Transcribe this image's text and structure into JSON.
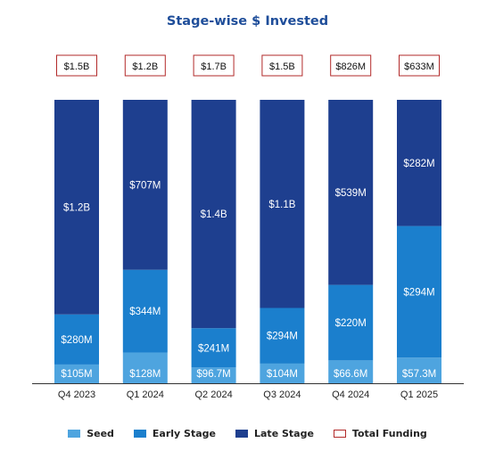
{
  "colors": {
    "seed": "#4ea4df",
    "early": "#1b7fcd",
    "late": "#1e3f8f",
    "total_border": "#b22a2a",
    "title": "#1f4e9a",
    "axis_text": "#222222"
  },
  "chart_data": {
    "type": "bar",
    "stacked": true,
    "title": "Stage-wise $ Invested",
    "categories": [
      "Q4 2023",
      "Q1 2024",
      "Q2 2024",
      "Q3 2024",
      "Q4 2024",
      "Q1 2025"
    ],
    "series": [
      {
        "name": "Seed",
        "values": [
          105,
          128,
          96.7,
          104,
          66.6,
          57.3
        ],
        "labels": [
          "$105M",
          "$128M",
          "$96.7M",
          "$104M",
          "$66.6M",
          "$57.3M"
        ]
      },
      {
        "name": "Early Stage",
        "values": [
          280,
          344,
          241,
          294,
          220,
          294
        ],
        "labels": [
          "$280M",
          "$344M",
          "$241M",
          "$294M",
          "$220M",
          "$294M"
        ]
      },
      {
        "name": "Late Stage",
        "values": [
          1200,
          707,
          1400,
          1100,
          539,
          282
        ],
        "labels": [
          "$1.2B",
          "$707M",
          "$1.4B",
          "$1.1B",
          "$539M",
          "$282M"
        ]
      }
    ],
    "totals": {
      "name": "Total Funding",
      "labels": [
        "$1.5B",
        "$1.2B",
        "$1.7B",
        "$1.5B",
        "$826M",
        "$633M"
      ]
    },
    "normalized_to_100_percent": true,
    "legend_position": "bottom",
    "grid": false
  },
  "legend": {
    "seed": "Seed",
    "early": "Early Stage",
    "late": "Late Stage",
    "total": "Total Funding"
  }
}
